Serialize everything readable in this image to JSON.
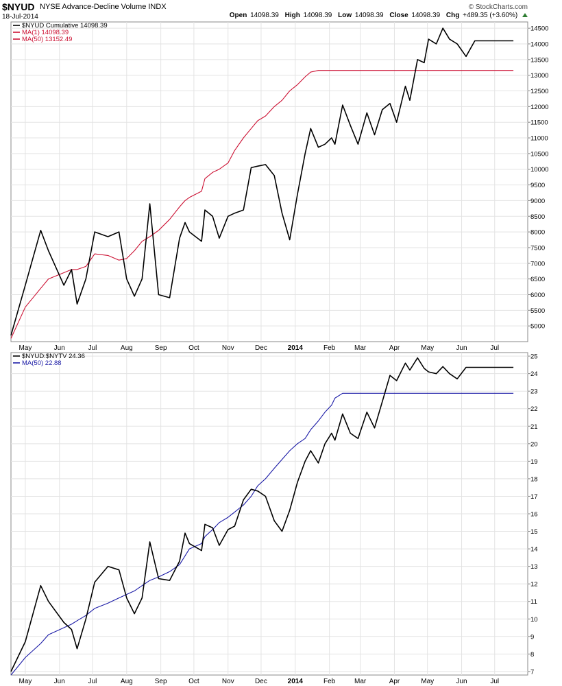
{
  "header": {
    "symbol": "$NYUD",
    "description": "NYSE Advance-Decline Volume INDX",
    "date": "18-Jul-2014",
    "credit": "© StockCharts.com",
    "open_label": "Open",
    "open": "14098.39",
    "high_label": "High",
    "high": "14098.39",
    "low_label": "Low",
    "low": "14098.39",
    "close_label": "Close",
    "close": "14098.39",
    "chg_label": "Chg",
    "chg": "+489.35 (+3.60%)",
    "up_color": "#2e7d32"
  },
  "chart_data": [
    {
      "type": "line",
      "legend": [
        "$NYUD Cumulative 14098.39",
        "MA(1) 14098.39",
        "MA(50) 13152.49"
      ],
      "legend_placement": "top-left",
      "ylim": [
        4500,
        14700
      ],
      "yticks": [
        5000,
        5500,
        6000,
        6500,
        7000,
        7500,
        8000,
        8500,
        9000,
        9500,
        10000,
        10500,
        11000,
        11500,
        12000,
        12500,
        13000,
        13500,
        14000,
        14500
      ],
      "x": [
        "2013-04-18",
        "2013-05-01",
        "2013-05-15",
        "2013-05-22",
        "2013-06-05",
        "2013-06-12",
        "2013-06-17",
        "2013-06-25",
        "2013-07-03",
        "2013-07-15",
        "2013-07-25",
        "2013-08-01",
        "2013-08-08",
        "2013-08-15",
        "2013-08-22",
        "2013-08-30",
        "2013-09-09",
        "2013-09-18",
        "2013-09-23",
        "2013-09-27",
        "2013-10-08",
        "2013-10-11",
        "2013-10-18",
        "2013-10-24",
        "2013-11-01",
        "2013-11-07",
        "2013-11-15",
        "2013-11-22",
        "2013-11-28",
        "2013-12-05",
        "2013-12-13",
        "2013-12-20",
        "2013-12-27",
        "2014-01-03",
        "2014-01-10",
        "2014-01-15",
        "2014-01-22",
        "2014-01-28",
        "2014-02-03",
        "2014-02-06",
        "2014-02-13",
        "2014-02-20",
        "2014-02-27",
        "2014-03-07",
        "2014-03-14",
        "2014-03-21",
        "2014-03-28",
        "2014-04-03",
        "2014-04-11",
        "2014-04-15",
        "2014-04-22",
        "2014-04-28",
        "2014-05-02",
        "2014-05-09",
        "2014-05-15",
        "2014-05-21",
        "2014-05-28",
        "2014-06-05",
        "2014-06-13",
        "2014-06-20",
        "2014-06-27",
        "2014-07-03",
        "2014-07-08",
        "2014-07-11",
        "2014-07-15",
        "2014-07-17",
        "2014-07-18"
      ],
      "series": [
        {
          "name": "$NYUD Cumulative",
          "color": "#000000",
          "values": [
            4700,
            6300,
            8050,
            7400,
            6300,
            6800,
            5700,
            6500,
            8000,
            7850,
            8000,
            6500,
            5950,
            6500,
            8900,
            6000,
            5900,
            7800,
            8300,
            8000,
            7700,
            8700,
            8500,
            7800,
            8500,
            8600,
            8700,
            10050,
            10100,
            10150,
            9800,
            8600,
            7750,
            9200,
            10500,
            11300,
            10700,
            10800,
            11000,
            10800,
            12050,
            11400,
            10800,
            11800,
            11100,
            11900,
            12100,
            11500,
            12650,
            12200,
            13500,
            13400,
            14150,
            14000,
            14500,
            14150,
            14000,
            13600,
            14098.39,
            14098.39,
            14098.39,
            14098.39,
            14098.39,
            14098.39,
            14098.39,
            14098.39,
            14098.39
          ]
        },
        {
          "name": "MA(50)",
          "color": "#cc1133",
          "values": [
            4600,
            5600,
            6200,
            6500,
            6700,
            6800,
            6800,
            6900,
            7300,
            7250,
            7100,
            7150,
            7400,
            7700,
            7850,
            8050,
            8400,
            8800,
            9000,
            9100,
            9300,
            9700,
            9900,
            10000,
            10200,
            10600,
            11000,
            11300,
            11550,
            11700,
            12000,
            12200,
            12500,
            12700,
            12950,
            13100,
            13152.49,
            13152.49,
            13152.49,
            13152.49,
            13152.49,
            13152.49,
            13152.49,
            13152.49,
            13152.49,
            13152.49,
            13152.49,
            13152.49,
            13152.49,
            13152.49,
            13152.49,
            13152.49,
            13152.49,
            13152.49,
            13152.49,
            13152.49,
            13152.49,
            13152.49,
            13152.49,
            13152.49,
            13152.49,
            13152.49,
            13152.49,
            13152.49,
            13152.49,
            13152.49,
            13152.49
          ]
        }
      ]
    },
    {
      "type": "line",
      "legend": [
        "$NYUD:$NYTV 24.36",
        "MA(50) 22.88"
      ],
      "legend_placement": "top-left",
      "ylim": [
        6.8,
        25.2
      ],
      "yticks": [
        7,
        8,
        9,
        10,
        11,
        12,
        13,
        14,
        15,
        16,
        17,
        18,
        19,
        20,
        21,
        22,
        23,
        24,
        25
      ],
      "x": [
        "2013-04-18",
        "2013-05-01",
        "2013-05-15",
        "2013-05-22",
        "2013-06-05",
        "2013-06-12",
        "2013-06-17",
        "2013-06-25",
        "2013-07-03",
        "2013-07-15",
        "2013-07-25",
        "2013-08-01",
        "2013-08-08",
        "2013-08-15",
        "2013-08-22",
        "2013-08-30",
        "2013-09-09",
        "2013-09-18",
        "2013-09-23",
        "2013-09-27",
        "2013-10-08",
        "2013-10-11",
        "2013-10-18",
        "2013-10-24",
        "2013-11-01",
        "2013-11-07",
        "2013-11-15",
        "2013-11-22",
        "2013-11-28",
        "2013-12-05",
        "2013-12-13",
        "2013-12-20",
        "2013-12-27",
        "2014-01-03",
        "2014-01-10",
        "2014-01-15",
        "2014-01-22",
        "2014-01-28",
        "2014-02-03",
        "2014-02-06",
        "2014-02-13",
        "2014-02-20",
        "2014-02-27",
        "2014-03-07",
        "2014-03-14",
        "2014-03-21",
        "2014-03-28",
        "2014-04-03",
        "2014-04-11",
        "2014-04-15",
        "2014-04-22",
        "2014-04-28",
        "2014-05-02",
        "2014-05-09",
        "2014-05-15",
        "2014-05-21",
        "2014-05-28",
        "2014-06-05",
        "2014-06-13",
        "2014-06-20",
        "2014-06-27",
        "2014-07-03",
        "2014-07-08",
        "2014-07-11",
        "2014-07-15",
        "2014-07-17",
        "2014-07-18"
      ],
      "series": [
        {
          "name": "$NYUD:$NYTV",
          "color": "#000000",
          "values": [
            7.0,
            8.7,
            11.9,
            11.0,
            9.8,
            9.4,
            8.3,
            10.0,
            12.1,
            13.0,
            12.8,
            11.2,
            10.3,
            11.2,
            14.4,
            12.3,
            12.2,
            13.3,
            14.9,
            14.3,
            13.9,
            15.4,
            15.2,
            14.2,
            15.1,
            15.3,
            16.8,
            17.4,
            17.3,
            17.0,
            15.6,
            15.0,
            16.2,
            17.8,
            19.0,
            19.6,
            18.9,
            20.0,
            20.6,
            20.2,
            21.7,
            20.6,
            20.3,
            21.8,
            20.9,
            22.4,
            23.9,
            23.6,
            24.6,
            24.2,
            24.9,
            24.3,
            24.1,
            24.0,
            24.4,
            24.0,
            23.7,
            24.36,
            24.36,
            24.36,
            24.36,
            24.36,
            24.36,
            24.36,
            24.36,
            24.36,
            24.36
          ]
        },
        {
          "name": "MA(50)",
          "color": "#1a1aa6",
          "values": [
            6.8,
            7.8,
            8.6,
            9.1,
            9.5,
            9.7,
            9.9,
            10.2,
            10.6,
            10.9,
            11.2,
            11.4,
            11.6,
            11.9,
            12.2,
            12.4,
            12.7,
            13.1,
            13.6,
            14.0,
            14.3,
            14.7,
            15.1,
            15.5,
            15.8,
            16.1,
            16.5,
            17.0,
            17.6,
            18.0,
            18.6,
            19.1,
            19.6,
            20.0,
            20.3,
            20.8,
            21.3,
            21.8,
            22.2,
            22.6,
            22.88,
            22.88,
            22.88,
            22.88,
            22.88,
            22.88,
            22.88,
            22.88,
            22.88,
            22.88,
            22.88,
            22.88,
            22.88,
            22.88,
            22.88,
            22.88,
            22.88,
            22.88,
            22.88,
            22.88,
            22.88,
            22.88,
            22.88,
            22.88,
            22.88,
            22.88,
            22.88
          ]
        }
      ]
    }
  ],
  "x_axis": {
    "labels": [
      "May",
      "Jun",
      "Jul",
      "Aug",
      "Sep",
      "Oct",
      "Nov",
      "Dec",
      "2014",
      "Feb",
      "Mar",
      "Apr",
      "May",
      "Jun",
      "Jul"
    ],
    "dates": [
      "2013-05-01",
      "2013-06-01",
      "2013-07-01",
      "2013-08-01",
      "2013-09-01",
      "2013-10-01",
      "2013-11-01",
      "2013-12-01",
      "2014-01-01",
      "2014-02-01",
      "2014-03-01",
      "2014-04-01",
      "2014-05-01",
      "2014-06-01",
      "2014-07-01"
    ],
    "bold_labels": [
      "2014"
    ],
    "start": "2013-04-18",
    "end": "2014-07-31"
  }
}
